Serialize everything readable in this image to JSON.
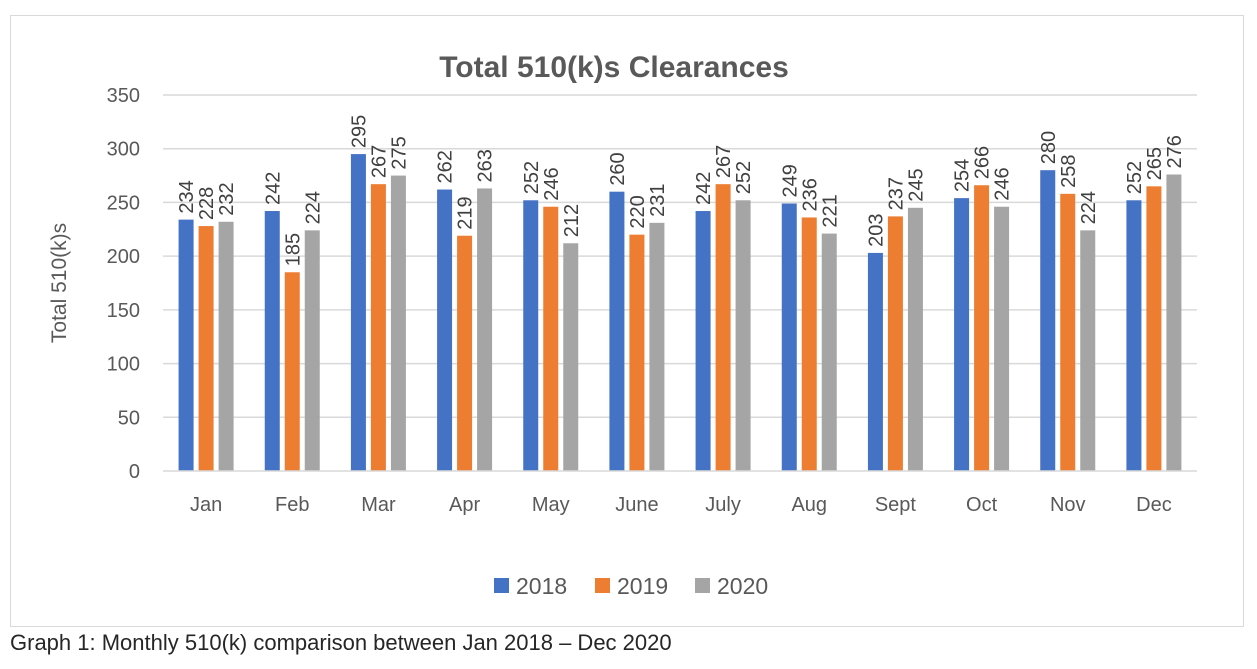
{
  "caption": "Graph 1: Monthly 510(k) comparison between Jan 2018 – Dec 2020",
  "chart_data": {
    "type": "bar",
    "title": "Total 510(k)s Clearances",
    "xlabel": "",
    "ylabel": "Total 510(k)s",
    "ylim": [
      0,
      350
    ],
    "yticks": [
      0,
      50,
      100,
      150,
      200,
      250,
      300,
      350
    ],
    "grid": true,
    "legend_position": "bottom",
    "categories": [
      "Jan",
      "Feb",
      "Mar",
      "Apr",
      "May",
      "June",
      "July",
      "Aug",
      "Sept",
      "Oct",
      "Nov",
      "Dec"
    ],
    "series": [
      {
        "name": "2018",
        "color": "#4472c4",
        "values": [
          234,
          242,
          295,
          262,
          252,
          260,
          242,
          249,
          203,
          254,
          280,
          252
        ]
      },
      {
        "name": "2019",
        "color": "#ed7d31",
        "values": [
          228,
          185,
          267,
          219,
          246,
          220,
          267,
          236,
          237,
          266,
          258,
          265
        ]
      },
      {
        "name": "2020",
        "color": "#a5a5a5",
        "values": [
          232,
          224,
          275,
          263,
          212,
          231,
          252,
          221,
          245,
          246,
          224,
          276
        ]
      }
    ],
    "data_labels": true
  }
}
